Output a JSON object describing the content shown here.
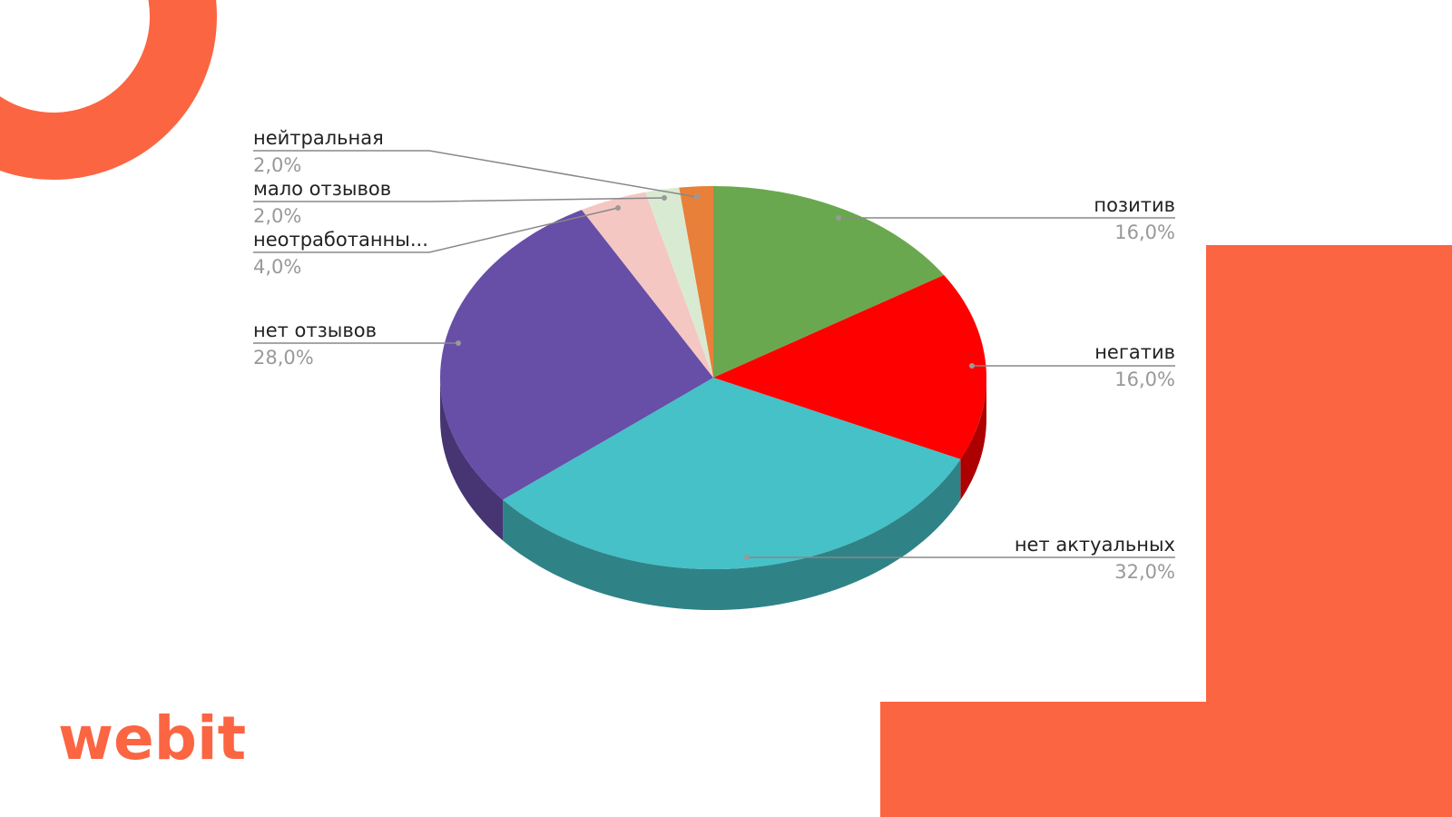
{
  "logo": "webit",
  "chart_data": {
    "type": "pie",
    "categories": [
      "позитив",
      "негатив",
      "нет актуальных",
      "нет отзывов",
      "неотработанны...",
      "мало отзывов",
      "нейтральная"
    ],
    "values": [
      16,
      16,
      32,
      28,
      4,
      2,
      2
    ],
    "value_labels": [
      "16,0%",
      "16,0%",
      "32,0%",
      "28,0%",
      "4,0%",
      "2,0%",
      "2,0%"
    ],
    "colors": [
      "#6aa84f",
      "#ff0000",
      "#45c1c7",
      "#674ea7",
      "#f4c7c3",
      "#d9ead3",
      "#e8803a"
    ]
  }
}
